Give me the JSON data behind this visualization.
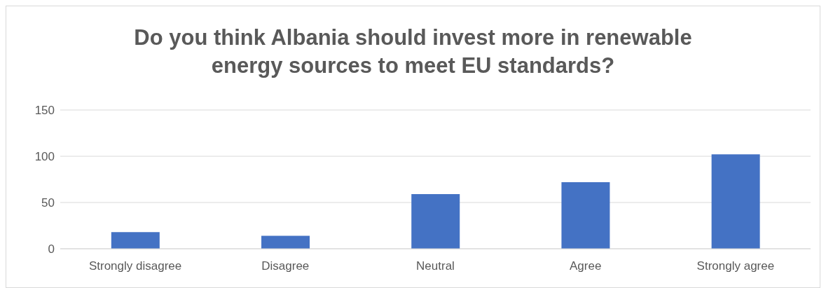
{
  "chart_data": {
    "type": "bar",
    "title": "Do you think Albania should invest more in renewable energy sources to meet EU standards?",
    "categories": [
      "Strongly disagree",
      "Disagree",
      "Neutral",
      "Agree",
      "Strongly agree"
    ],
    "values": [
      18,
      14,
      59,
      72,
      102
    ],
    "color": "#4472c4",
    "ylim": [
      0,
      150
    ],
    "yticks": [
      0,
      50,
      100,
      150
    ],
    "grid": "y"
  }
}
